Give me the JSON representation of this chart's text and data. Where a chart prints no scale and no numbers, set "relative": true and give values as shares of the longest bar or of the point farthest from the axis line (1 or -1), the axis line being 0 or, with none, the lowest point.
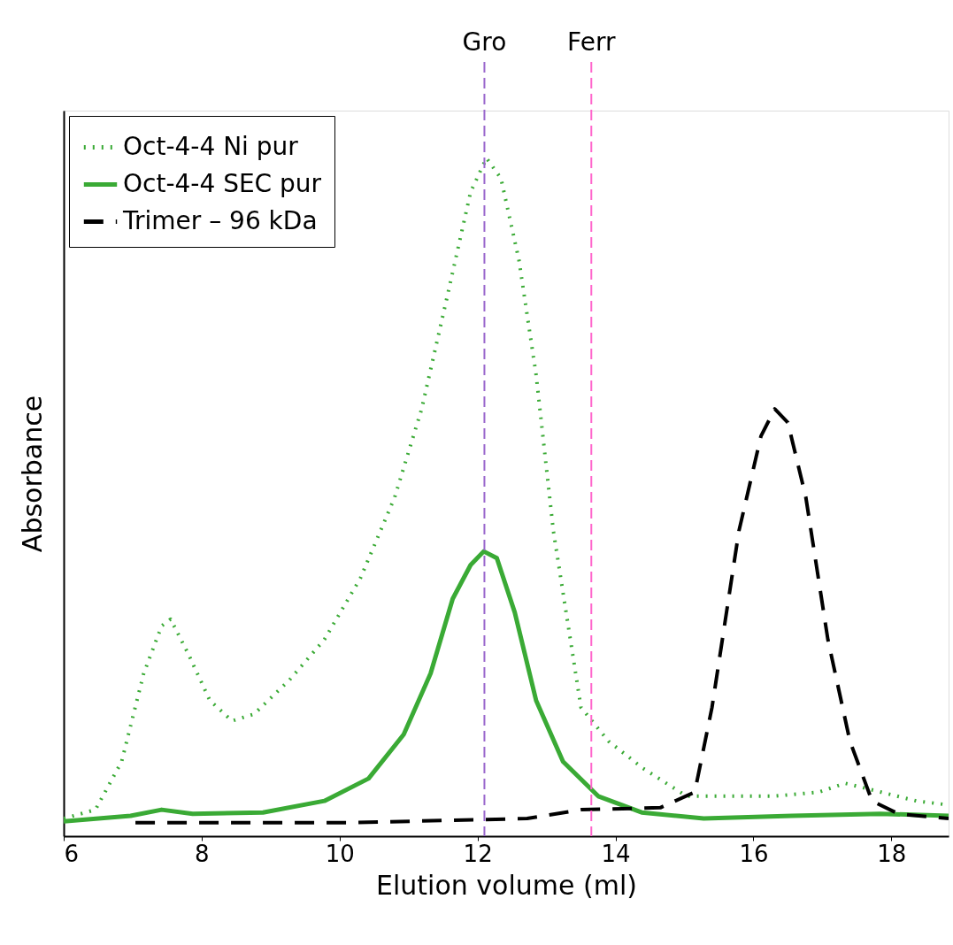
{
  "chart_data": {
    "type": "line",
    "xlabel": "Elution volume (ml)",
    "ylabel": "Absorbance",
    "relative": true,
    "xlim": [
      6,
      18.83
    ],
    "xticks": [
      6,
      8,
      10,
      12,
      14,
      16,
      18
    ],
    "tick_labels": "x",
    "legend": "top left",
    "grid": false,
    "marker": "none",
    "series": [
      {
        "name": "Oct-4-4 Ni pur",
        "color": "#3aaa35",
        "line_style": "dotted",
        "x": [
          6.0,
          6.46,
          6.84,
          7.16,
          7.42,
          7.55,
          7.8,
          8.12,
          8.44,
          8.76,
          9.27,
          9.78,
          10.3,
          10.8,
          11.19,
          11.57,
          11.9,
          12.13,
          12.34,
          12.6,
          12.85,
          13.1,
          13.5,
          13.9,
          14.4,
          15.03,
          15.67,
          16.3,
          16.95,
          17.33,
          17.85,
          18.36,
          18.83
        ],
        "values": [
          0.026,
          0.039,
          0.11,
          0.24,
          0.31,
          0.32,
          0.27,
          0.2,
          0.17,
          0.18,
          0.23,
          0.29,
          0.38,
          0.5,
          0.63,
          0.8,
          0.95,
          1.0,
          0.97,
          0.85,
          0.68,
          0.45,
          0.19,
          0.14,
          0.1,
          0.059,
          0.059,
          0.059,
          0.065,
          0.078,
          0.065,
          0.052,
          0.046
        ]
      },
      {
        "name": "Oct-4-4 SEC pur",
        "color": "#3aaa35",
        "line_style": "solid",
        "x": [
          6.0,
          6.97,
          7.42,
          7.87,
          8.89,
          9.78,
          10.42,
          10.93,
          11.32,
          11.64,
          11.9,
          12.09,
          12.28,
          12.54,
          12.85,
          13.24,
          13.75,
          14.38,
          15.28,
          16.56,
          17.84,
          18.83
        ],
        "values": [
          0.022,
          0.03,
          0.039,
          0.033,
          0.035,
          0.052,
          0.085,
          0.15,
          0.24,
          0.35,
          0.4,
          0.42,
          0.41,
          0.33,
          0.2,
          0.11,
          0.059,
          0.035,
          0.026,
          0.03,
          0.033,
          0.03
        ]
      },
      {
        "name": "Trimer – 96 kDa",
        "color": "#000000",
        "line_style": "dashed",
        "x": [
          7.04,
          10.17,
          12.72,
          13.5,
          14.65,
          15.15,
          15.4,
          15.79,
          16.11,
          16.31,
          16.5,
          16.76,
          17.08,
          17.4,
          17.72,
          18.1,
          18.83
        ],
        "values": [
          0.02,
          0.02,
          0.026,
          0.039,
          0.042,
          0.065,
          0.19,
          0.45,
          0.59,
          0.63,
          0.61,
          0.5,
          0.29,
          0.14,
          0.052,
          0.033,
          0.026
        ]
      }
    ],
    "ref_lines": [
      {
        "axis": "x",
        "value": 12.1,
        "label": "Gro",
        "color": "#9966cc",
        "line_style": "dashed"
      },
      {
        "axis": "x",
        "value": 13.65,
        "label": "Ferr",
        "color": "#ff66cc",
        "line_style": "dashed"
      }
    ]
  }
}
